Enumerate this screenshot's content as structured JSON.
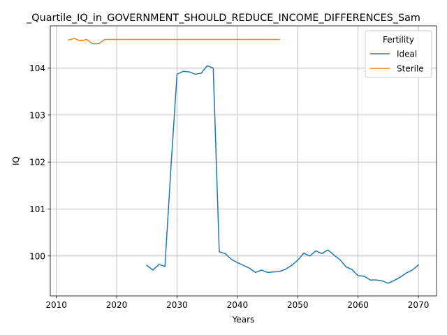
{
  "chart_data": {
    "type": "line",
    "title": "_Quartile_IQ_in_GOVERNMENT_SHOULD_REDUCE_INCOME_DIFFERENCES_Sam",
    "xlabel": "Years",
    "ylabel": "IQ",
    "xlim": [
      2009,
      2073
    ],
    "ylim": [
      99.15,
      104.9
    ],
    "xticks": [
      2010,
      2020,
      2030,
      2040,
      2050,
      2060,
      2070
    ],
    "yticks": [
      100,
      101,
      102,
      103,
      104
    ],
    "grid": true,
    "legend": {
      "title": "Fertility",
      "placement": "upper right"
    },
    "series": [
      {
        "name": "Ideal",
        "color": "#1f77b4",
        "x": [
          2025,
          2026,
          2027,
          2028,
          2029,
          2030,
          2031,
          2032,
          2033,
          2034,
          2035,
          2036,
          2037,
          2038,
          2039,
          2040,
          2041,
          2042,
          2043,
          2044,
          2045,
          2046,
          2047,
          2048,
          2049,
          2050,
          2051,
          2052,
          2053,
          2054,
          2055,
          2056,
          2057,
          2058,
          2059,
          2060,
          2061,
          2062,
          2063,
          2064,
          2065,
          2066,
          2067,
          2068,
          2069,
          2070
        ],
        "y": [
          99.8,
          99.7,
          99.82,
          99.78,
          101.9,
          103.87,
          103.93,
          103.92,
          103.87,
          103.89,
          104.05,
          104.0,
          100.09,
          100.05,
          99.93,
          99.86,
          99.8,
          99.74,
          99.65,
          99.7,
          99.65,
          99.66,
          99.67,
          99.72,
          99.8,
          99.91,
          100.06,
          100.0,
          100.11,
          100.05,
          100.13,
          100.02,
          99.92,
          99.77,
          99.71,
          99.58,
          99.57,
          99.49,
          99.49,
          99.47,
          99.42,
          99.48,
          99.55,
          99.64,
          99.7,
          99.81
        ]
      },
      {
        "name": "Sterile",
        "color": "#ff7f0e",
        "x": [
          2012,
          2013,
          2014,
          2015,
          2016,
          2017,
          2018,
          2019,
          2020,
          2021,
          2022,
          2023,
          2024,
          2025,
          2026,
          2027,
          2028,
          2029,
          2030,
          2031,
          2032,
          2033,
          2034,
          2035,
          2036,
          2037,
          2038,
          2039,
          2040,
          2041,
          2042,
          2043,
          2044,
          2045,
          2046,
          2047
        ],
        "y": [
          104.6,
          104.63,
          104.58,
          104.61,
          104.52,
          104.52,
          104.61,
          104.61,
          104.61,
          104.61,
          104.61,
          104.61,
          104.61,
          104.61,
          104.61,
          104.61,
          104.61,
          104.61,
          104.61,
          104.61,
          104.61,
          104.61,
          104.61,
          104.61,
          104.61,
          104.61,
          104.61,
          104.61,
          104.61,
          104.61,
          104.61,
          104.61,
          104.61,
          104.61,
          104.61,
          104.61
        ]
      }
    ]
  }
}
